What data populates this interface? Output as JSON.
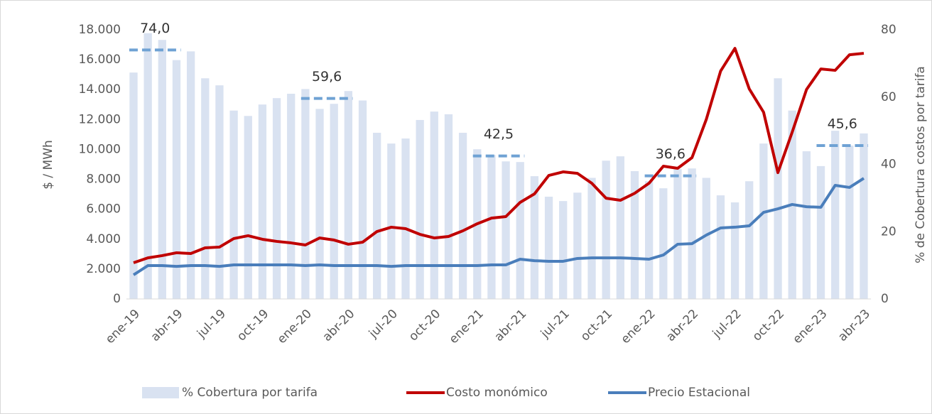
{
  "chart_data": {
    "type": "combo",
    "y_label": "$ / MWh",
    "y2_label": "% de Cobertura costos por tarifa",
    "categories": [
      "ene-19",
      null,
      null,
      "abr-19",
      null,
      null,
      "jul-19",
      null,
      null,
      "oct-19",
      null,
      null,
      "ene-20",
      null,
      null,
      "abr-20",
      null,
      null,
      "jul-20",
      null,
      null,
      "oct-20",
      null,
      null,
      "ene-21",
      null,
      null,
      "abr-21",
      null,
      null,
      "jul-21",
      null,
      null,
      "oct-21",
      null,
      null,
      "ene-22",
      null,
      null,
      "abr-22",
      null,
      null,
      "jul-22",
      null,
      null,
      "oct-22",
      null,
      null,
      "ene-23",
      null,
      null,
      "abr-23"
    ],
    "series": [
      {
        "name": "% Cobertura por tarifa",
        "type": "bar",
        "axis": "y2",
        "color": "#d9e2f1",
        "values": [
          67.3,
          79,
          77,
          71,
          73.6,
          65.6,
          63.5,
          56,
          54.4,
          57.8,
          59.7,
          61,
          62.4,
          56.5,
          58,
          61.8,
          59,
          49.4,
          46.2,
          47.7,
          53.2,
          55.7,
          54.9,
          49.4,
          44.5,
          42.8,
          40.9,
          40.7,
          36.5,
          30.4,
          29.1,
          31.6,
          36,
          41.1,
          42.4,
          38,
          35,
          32.9,
          38.6,
          38.8,
          36,
          30.8,
          28.7,
          35,
          46.2,
          65.6,
          56,
          43.9,
          39.5,
          50,
          45.6,
          49.2
        ]
      },
      {
        "name": "Costo monómico",
        "type": "line",
        "color": "#c00000",
        "values": [
          2420,
          2750,
          2900,
          3090,
          3040,
          3420,
          3470,
          4040,
          4230,
          3990,
          3850,
          3750,
          3610,
          4080,
          3940,
          3660,
          3800,
          4510,
          4800,
          4700,
          4320,
          4080,
          4180,
          4560,
          5030,
          5410,
          5510,
          6460,
          7030,
          8260,
          8500,
          8400,
          7740,
          6740,
          6600,
          7070,
          7740,
          8880,
          8740,
          9450,
          12010,
          15240,
          16760,
          14050,
          12490,
          8450,
          11160,
          14010,
          15380,
          15290,
          16330,
          16430
        ]
      },
      {
        "name": "Precio Estacional",
        "type": "line",
        "color": "#4a7ebb",
        "values": [
          1610,
          2230,
          2230,
          2180,
          2230,
          2230,
          2180,
          2280,
          2280,
          2280,
          2280,
          2280,
          2230,
          2280,
          2230,
          2230,
          2230,
          2230,
          2180,
          2230,
          2230,
          2230,
          2230,
          2230,
          2230,
          2280,
          2280,
          2660,
          2560,
          2520,
          2520,
          2710,
          2750,
          2750,
          2750,
          2710,
          2660,
          2940,
          3660,
          3700,
          4270,
          4750,
          4800,
          4890,
          5790,
          6030,
          6320,
          6170,
          6130,
          7600,
          7460,
          8070
        ]
      }
    ],
    "annotations": [
      {
        "value": 74.0,
        "label": "74,0"
      },
      {
        "value": 59.6,
        "label": "59,6"
      },
      {
        "value": 42.5,
        "label": "42,5"
      },
      {
        "value": 36.6,
        "label": "36,6"
      },
      {
        "value": 45.6,
        "label": "45,6"
      }
    ],
    "annotation_color": "#6fa2d4",
    "ylim": [
      0,
      18000
    ],
    "yticks": [
      0,
      {
        "value": 2000,
        "label": "2.000"
      },
      {
        "value": 4000,
        "label": "4.000"
      },
      {
        "value": 6000,
        "label": "6.000"
      },
      {
        "value": 8000,
        "label": "8.000"
      },
      {
        "value": 10000,
        "label": "10.000"
      },
      {
        "value": 12000,
        "label": "12.000"
      },
      {
        "value": 14000,
        "label": "14.000"
      },
      {
        "value": 16000,
        "label": "16.000"
      },
      {
        "value": 18000,
        "label": "18.000"
      }
    ],
    "y2lim": [
      0,
      80
    ],
    "y2ticks": [
      0,
      20,
      40,
      60,
      80
    ]
  }
}
